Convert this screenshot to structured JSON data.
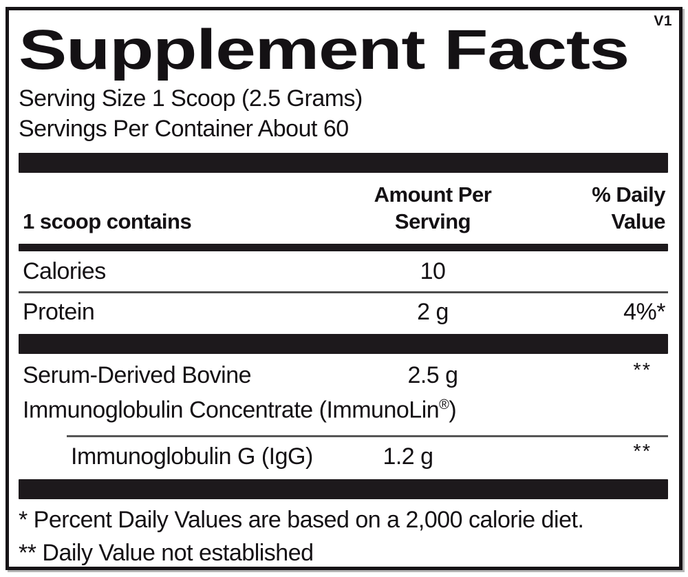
{
  "version_tag": "V1",
  "title": "Supplement Facts",
  "serving": {
    "size_line": "Serving Size 1 Scoop (2.5 Grams)",
    "per_container_line": "Servings Per Container About 60"
  },
  "table": {
    "left_header": "1 scoop contains",
    "amount_header": "Amount Per Serving",
    "dv_header": "% Daily Value",
    "rows": [
      {
        "name": "Calories",
        "amount": "10",
        "dv": ""
      },
      {
        "name": "Protein",
        "amount": "2 g",
        "dv": "4%*"
      },
      {
        "name_line1": "Serum-Derived Bovine",
        "name_line2": "Immunoglobulin Concentrate (ImmunoLin",
        "registered_mark": "®",
        "name_line2_close": ")",
        "amount": "2.5 g",
        "dv": "**"
      },
      {
        "name": "Immunoglobulin G (IgG)",
        "amount": "1.2 g",
        "dv": "**"
      }
    ]
  },
  "footnotes": {
    "dv_basis": "* Percent Daily Values are based on a 2,000 calorie diet.",
    "dv_not_established": "** Daily Value not established"
  },
  "colors": {
    "bar": "#1d191c",
    "text": "#141114",
    "background": "#ffffff"
  }
}
